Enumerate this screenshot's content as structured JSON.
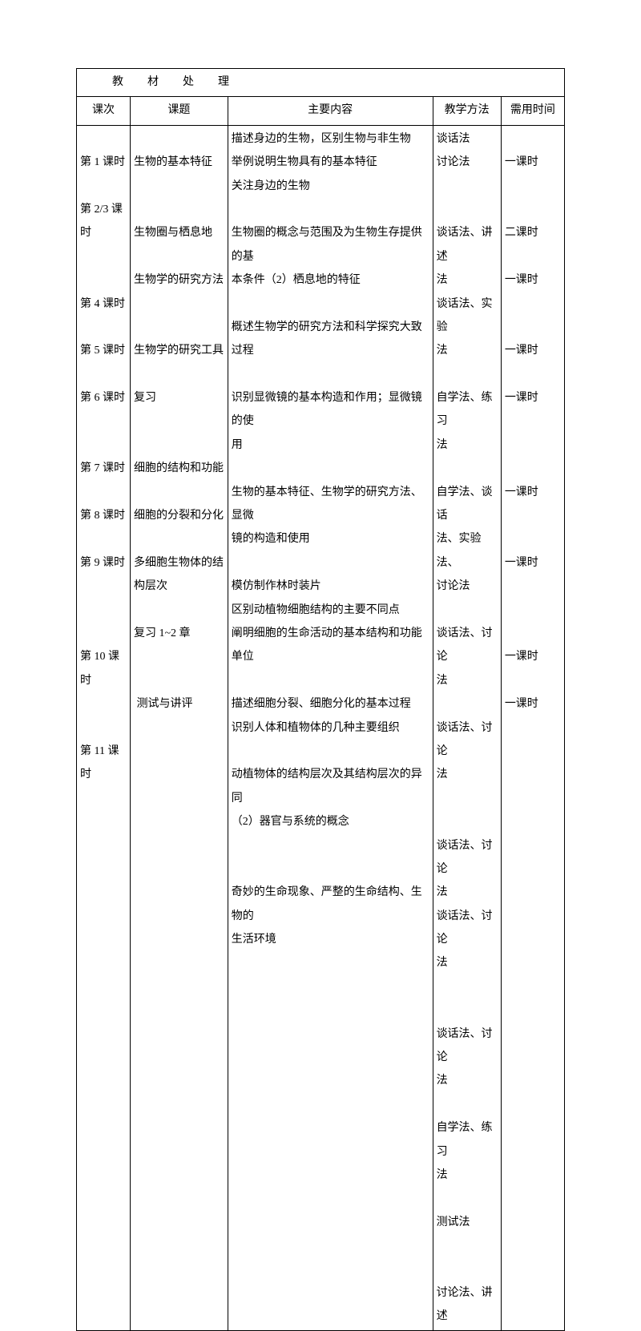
{
  "table": {
    "title": "教材处理",
    "headers": {
      "lesson": "课次",
      "topic": "课题",
      "content": "主要内容",
      "method": "教学方法",
      "time": "需用时间"
    },
    "body": {
      "lesson": "\n第 1 课时\n\n第 2/3 课\n时\n\n\n第 4 课时\n\n第 5 课时\n\n第 6 课时\n\n\n第 7 课时\n\n第 8 课时\n\n第 9 课时\n\n\n\n第 10 课\n时\n\n\n第 11 课\n时",
      "topic": "\n生物的基本特征\n\n\n生物圈与栖息地\n\n生物学的研究方法\n\n\n生物学的研究工具\n\n复习\n\n\n细胞的结构和功能\n\n细胞的分裂和分化\n\n多细胞生物体的结\n构层次\n\n复习 1~2 章\n\n\n 测试与讲评",
      "content": "描述身边的生物，区别生物与非生物\n举例说明生物具有的基本特征\n关注身边的生物\n\n生物圈的概念与范围及为生物生存提供的基\n本条件（2）栖息地的特征\n\n概述生物学的研究方法和科学探究大致过程\n\n识别显微镜的基本构造和作用；显微镜的使\n用\n\n生物的基本特征、生物学的研究方法、显微\n镜的构造和使用\n\n模仿制作林时装片\n区别动植物细胞结构的主要不同点\n阐明细胞的生命活动的基本结构和功能单位\n\n描述细胞分裂、细胞分化的基本过程\n识别人体和植物体的几种主要组织\n\n动植物体的结构层次及其结构层次的异同\n（2）器官与系统的概念\n\n\n奇妙的生命现象、严整的生命结构、生物的\n生活环境",
      "method": "谈话法\n讨论法\n\n\n谈话法、讲述\n法\n谈话法、实验\n法\n\n自学法、练习\n法\n\n自学法、谈话\n法、实验法、\n讨论法\n\n谈话法、讨论\n法\n\n谈话法、讨论\n法\n\n\n谈话法、讨论\n法\n谈话法、讨论\n法\n\n\n谈话法、讨论\n法\n\n自学法、练习\n法\n\n测试法\n\n\n讨论法、讲述",
      "time": "\n一课时\n\n\n二课时\n\n一课时\n\n\n一课时\n\n一课时\n\n\n\n一课时\n\n\n一课时\n\n\n\n一课时\n\n一课时"
    }
  }
}
